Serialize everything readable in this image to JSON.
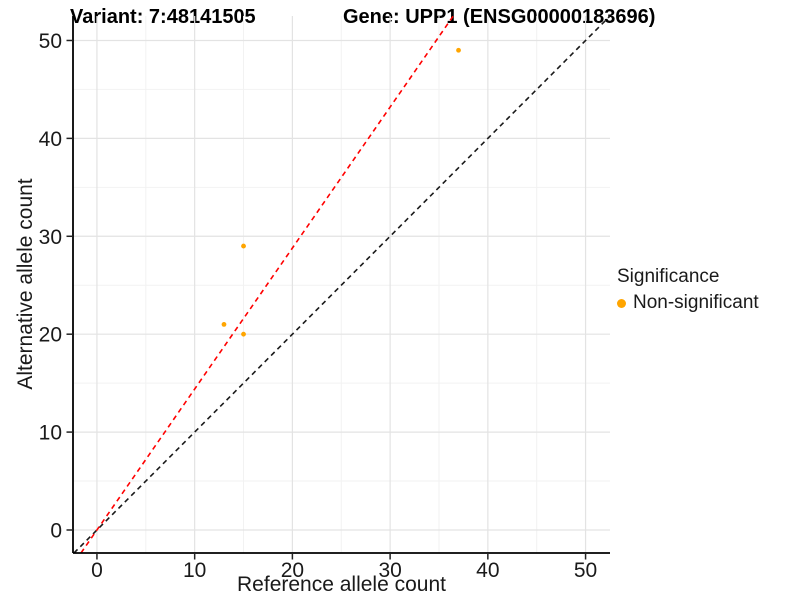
{
  "header": {
    "variant_title": "Variant: 7:48141505",
    "gene_title": "Gene: UPP1 (ENSG00000183696)"
  },
  "legend": {
    "title": "Significance",
    "items": [
      {
        "label": "Non-significant",
        "color": "#FFA500"
      }
    ]
  },
  "chart_data": {
    "type": "scatter",
    "xlabel": "Reference allele count",
    "ylabel": "Alternative allele count",
    "series": [
      {
        "name": "Non-significant",
        "color": "#FFA500",
        "points": [
          {
            "x": 37,
            "y": 49
          },
          {
            "x": 15,
            "y": 29
          },
          {
            "x": 13,
            "y": 21
          },
          {
            "x": 15,
            "y": 20
          }
        ]
      }
    ],
    "reference_lines": [
      {
        "name": "identity-line",
        "slope": 1,
        "intercept": 0,
        "color": "#1A1A1A",
        "style": "dashed"
      },
      {
        "name": "fitted-ratio-line",
        "slope": 1.44,
        "intercept": 0,
        "color": "#FF0000",
        "style": "dashed"
      }
    ],
    "xticks": [
      0,
      10,
      20,
      30,
      40,
      50
    ],
    "yticks": [
      0,
      10,
      20,
      30,
      40,
      50
    ],
    "xticks_minor": [
      5,
      15,
      25,
      35,
      45
    ],
    "yticks_minor": [
      5,
      15,
      25,
      35,
      45
    ],
    "xlim": [
      -2.45,
      52.5
    ],
    "ylim": [
      -2.35,
      52.5
    ],
    "grid": true,
    "legend_position": "right",
    "colors": {
      "grid_major": "#E3E3E3",
      "grid_minor": "#F2F2F2",
      "axis_line": "#000000",
      "tick_label": "#1A1A1A"
    }
  }
}
